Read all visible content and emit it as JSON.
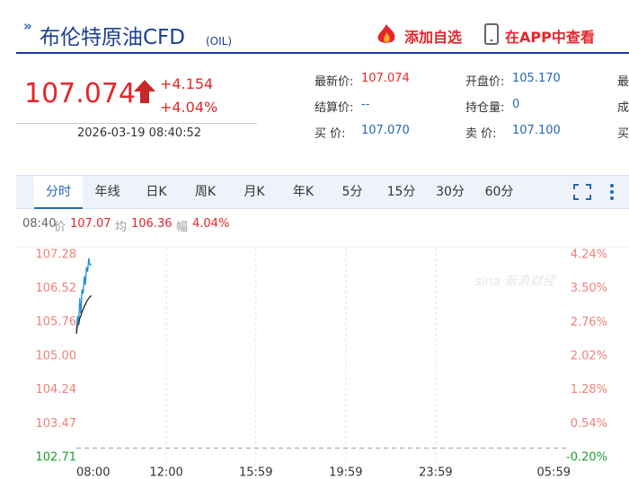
{
  "header": {
    "title": "布伦特原油CFD",
    "code": "(OIL)",
    "add_watch": "添加自选",
    "open_app": "在APP中查看"
  },
  "quote": {
    "price": "107.074",
    "change": "+4.154",
    "change_pct": "+4.04%",
    "time": "2026-03-19 08:40:52"
  },
  "info": [
    [
      "最新价:",
      "107.074"
    ],
    [
      "开盘价:",
      "105.170"
    ],
    [
      "结算价:",
      "--"
    ],
    [
      "持仓量:",
      "0"
    ],
    [
      "买 价:",
      "107.070"
    ],
    [
      "卖 价:",
      "107.100"
    ]
  ],
  "info_clipped": [
    "最",
    "成",
    "买"
  ],
  "tabs": [
    "分时",
    "年线",
    "日K",
    "周K",
    "月K",
    "年K",
    "5分",
    "15分",
    "30分",
    "60分"
  ],
  "chart_header": [
    "08:40",
    "价",
    "107.07",
    "均",
    "106.36",
    "幅",
    "4.04%"
  ],
  "chart_data": {
    "type": "line",
    "watermark": "sina 新浪财经",
    "x": [
      0,
      3,
      6,
      9,
      12,
      15,
      18,
      21,
      24,
      27,
      30,
      33,
      36,
      40
    ],
    "series": [
      {
        "color": "#1f8fd6",
        "values": [
          105.55,
          105.9,
          105.7,
          106.3,
          105.95,
          106.5,
          106.4,
          106.8,
          106.6,
          107.0,
          106.9,
          107.2,
          107.05,
          107.07
        ]
      },
      {
        "color": "#222222",
        "values": [
          105.5,
          105.7,
          105.72,
          105.85,
          105.9,
          106.0,
          106.05,
          106.12,
          106.16,
          106.22,
          106.26,
          106.3,
          106.33,
          106.36
        ]
      }
    ],
    "prev_close": 102.92,
    "xlim": [
      0,
      1319
    ],
    "xticks": [
      {
        "value": 0,
        "label": "08:00"
      },
      {
        "value": 240,
        "label": "12:00"
      },
      {
        "value": 479,
        "label": "15:59"
      },
      {
        "value": 719,
        "label": "19:59"
      },
      {
        "value": 959,
        "label": "23:59"
      },
      {
        "value": 1319,
        "label": "05:59"
      }
    ],
    "ylim": [
      102.71,
      107.28
    ],
    "yticks": [
      107.28,
      106.52,
      105.76,
      {
        "value": 105,
        "label": "105.00"
      },
      104.24,
      103.47,
      102.71
    ],
    "y2lim": [
      -0.2,
      4.24
    ],
    "y2ticks": [
      {
        "value": 4.24,
        "label": "4.24%"
      },
      {
        "value": 3.5,
        "label": "3.50%"
      },
      {
        "value": 2.76,
        "label": "2.76%"
      },
      {
        "value": 2.02,
        "label": "2.02%"
      },
      {
        "value": 1.28,
        "label": "1.28%"
      },
      {
        "value": 0.54,
        "label": "0.54%"
      },
      {
        "value": -0.2,
        "label": "-0.20%"
      }
    ]
  }
}
